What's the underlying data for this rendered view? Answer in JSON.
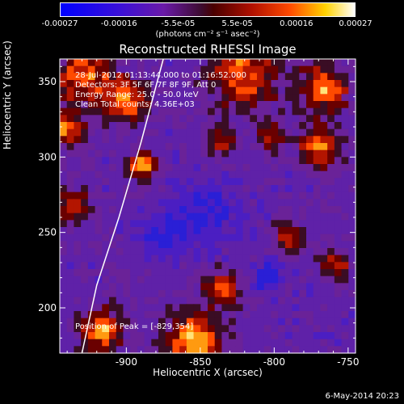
{
  "chart_data": {
    "type": "heatmap",
    "title": "Reconstructed RHESSI Image",
    "xlabel": "Heliocentric X (arcsec)",
    "ylabel": "Heliocentric Y (arcsec)",
    "xlim": [
      -945,
      -745
    ],
    "ylim": [
      170,
      365
    ],
    "x_ticks": [
      -900,
      -850,
      -800,
      -750
    ],
    "y_ticks": [
      200,
      250,
      300,
      350
    ],
    "colorbar": {
      "ticks": [
        "-0.00027",
        "-0.00016",
        "-5.5e-05",
        "5.5e-05",
        "0.00016",
        "0.00027"
      ],
      "units": "(photons cm⁻² s⁻¹ asec⁻²)",
      "range": [
        -0.00027,
        0.00027
      ]
    },
    "annotations": [
      "28-Jul-2012 01:13:44.000 to 01:16:52.000",
      "Detectors: 3F 5F 6F 7F 8F 9F, Att 0",
      "Energy Range: 25.0 - 50.0 keV",
      "Clean     Total counts: 4.36E+03"
    ],
    "peak_label": "Position of Peak = [-829,354]",
    "peak_position": [
      -829,
      354
    ],
    "limb_curve": [
      [
        -930,
        170
      ],
      [
        -920,
        215
      ],
      [
        -905,
        260
      ],
      [
        -890,
        310
      ],
      [
        -875,
        365
      ]
    ]
  },
  "footer": {
    "date": "6-May-2014 20:23"
  },
  "colors": {
    "background": "#000000",
    "axis": "#ffffff",
    "limb": "#ffffff"
  }
}
